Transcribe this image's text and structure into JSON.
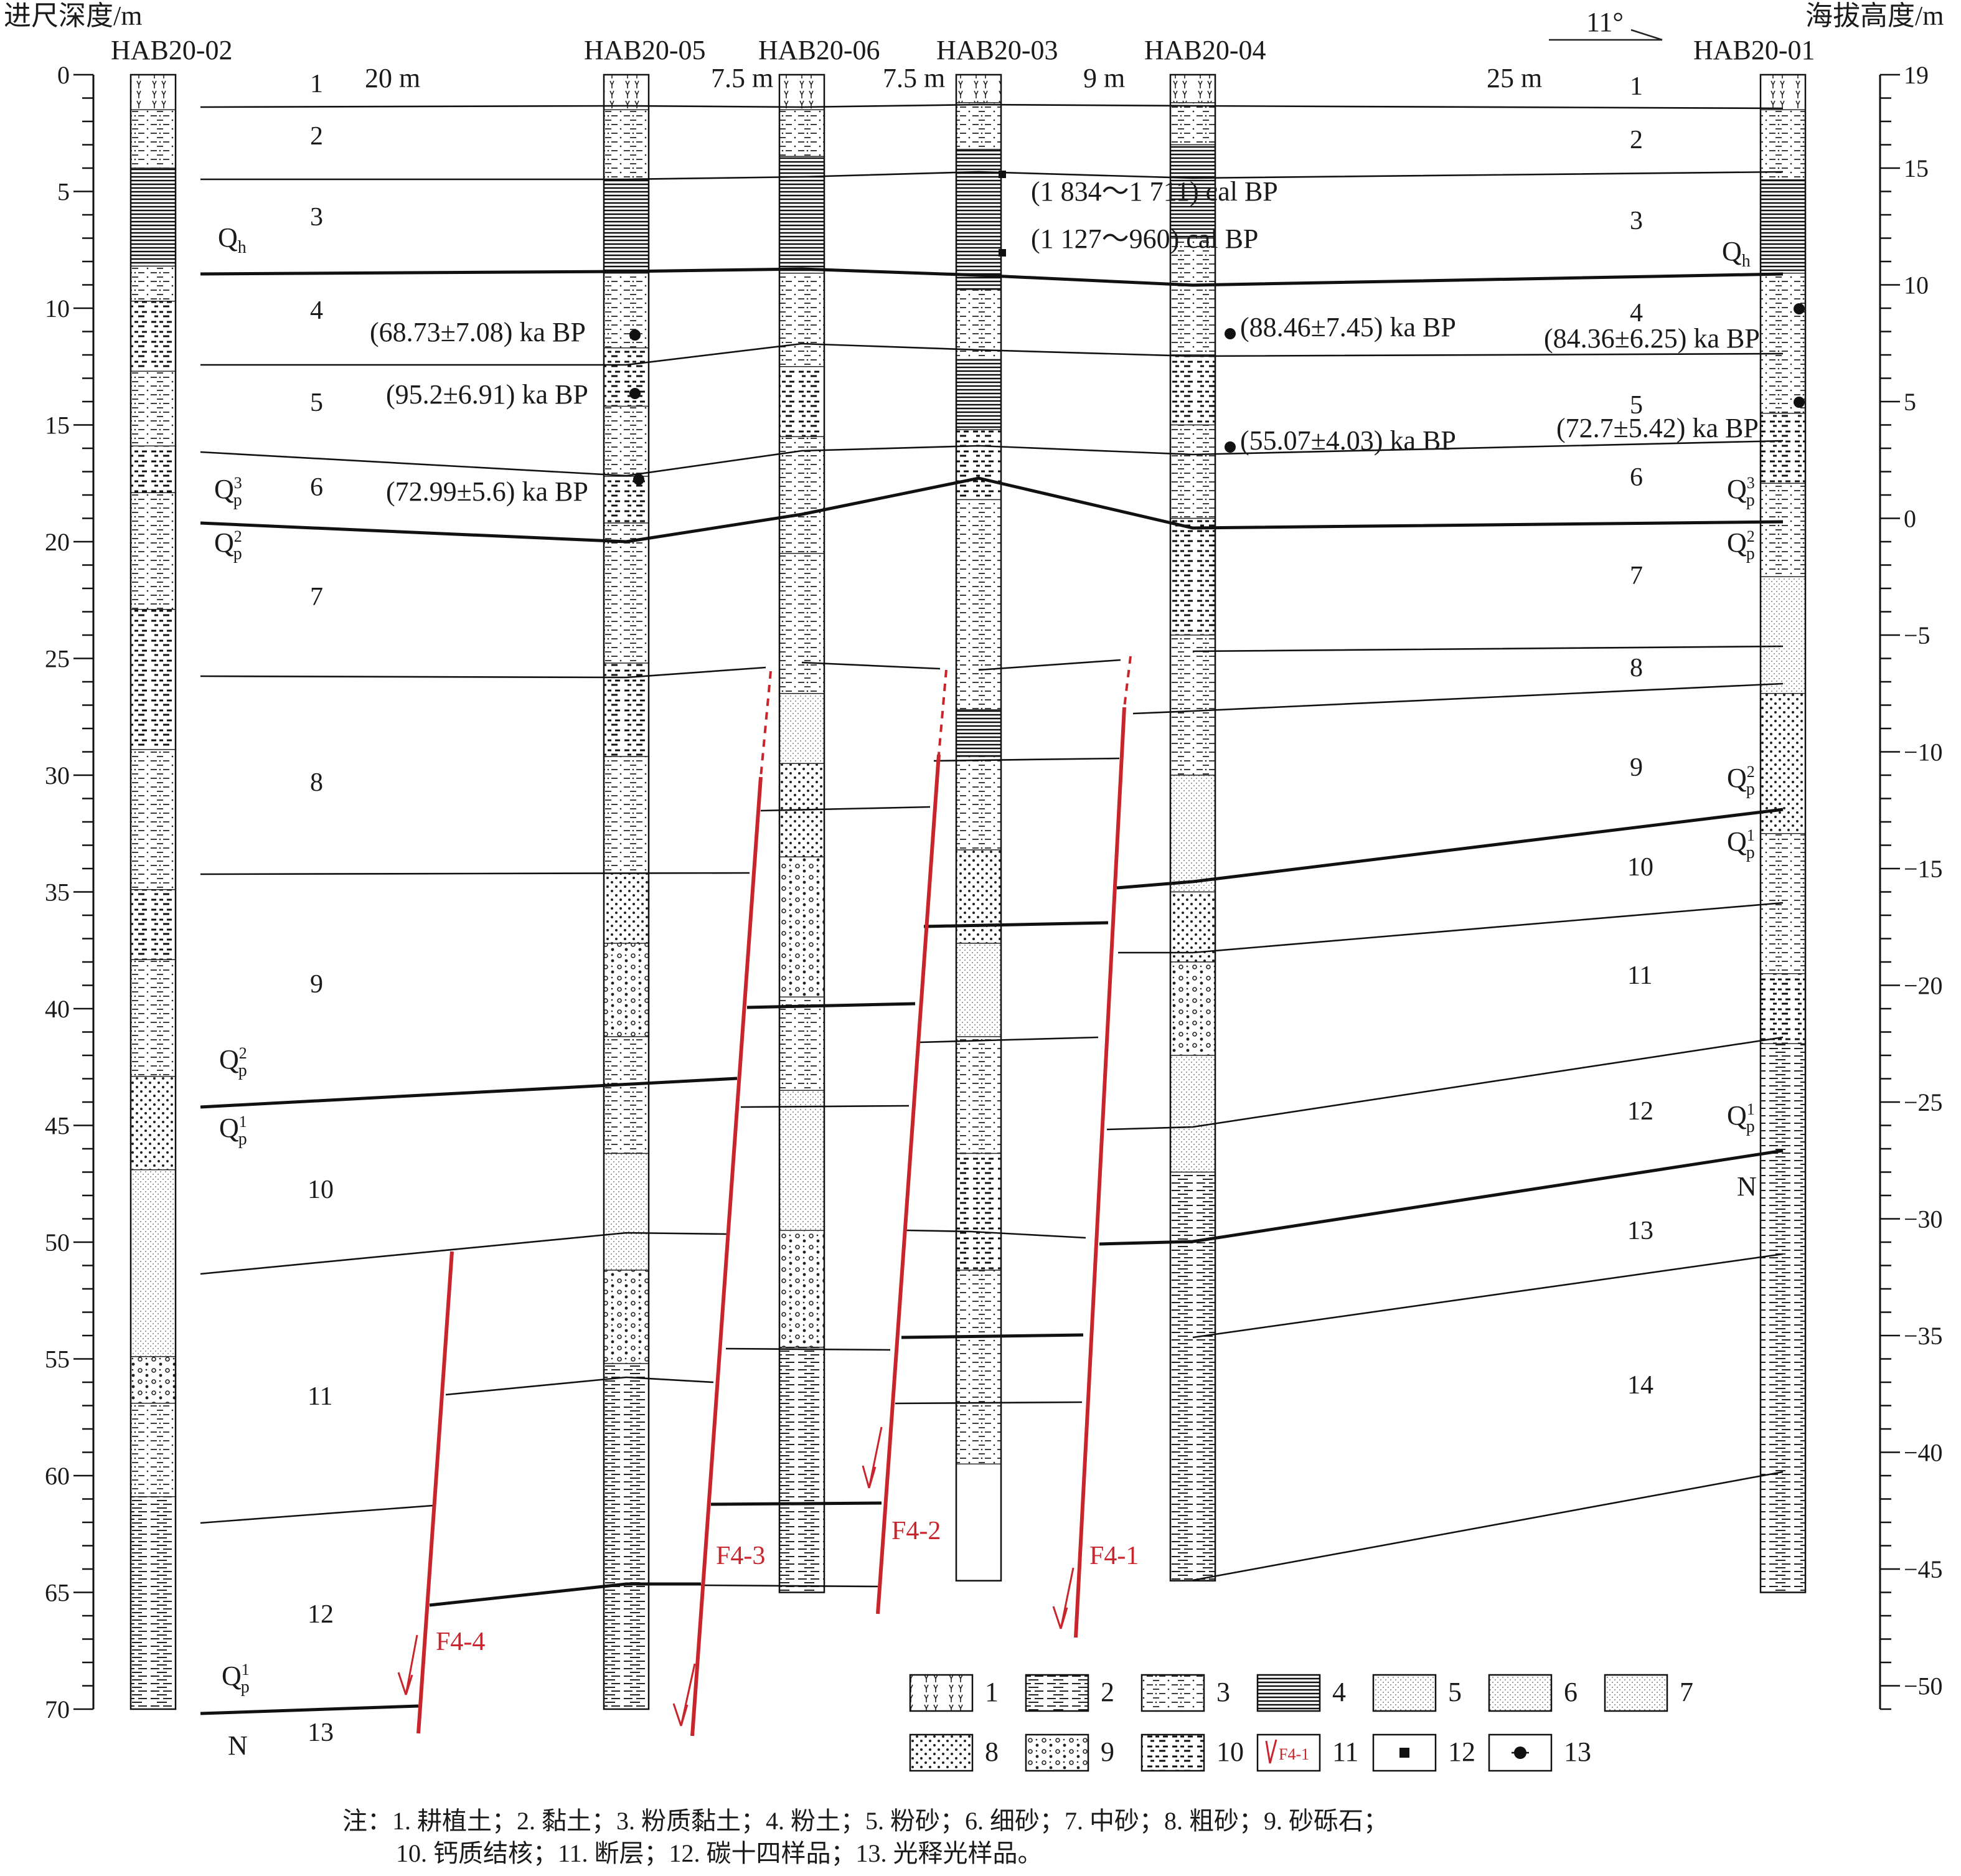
{
  "axes": {
    "left_title": "进尺深度/m",
    "right_title": "海拔高度/m",
    "left_ticks": [
      "0",
      "5",
      "10",
      "15",
      "20",
      "25",
      "30",
      "35",
      "40",
      "45",
      "50",
      "55",
      "60",
      "65",
      "70"
    ],
    "right_ticks": [
      "19",
      "15",
      "10",
      "5",
      "0",
      "−5",
      "−10",
      "−15",
      "−20",
      "−25",
      "−30",
      "−35",
      "−40",
      "−45",
      "−50"
    ]
  },
  "orientation": "11°",
  "boreholes": [
    {
      "name": "HAB20-02",
      "bottom_depth": 70
    },
    {
      "name": "HAB20-05",
      "bottom_depth": 70
    },
    {
      "name": "HAB20-06",
      "bottom_depth": 65
    },
    {
      "name": "HAB20-03",
      "bottom_depth": 64.5
    },
    {
      "name": "HAB20-04",
      "bottom_depth": 64.5
    },
    {
      "name": "HAB20-01",
      "bottom_depth": 65
    }
  ],
  "spacings": [
    "20 m",
    "7.5 m",
    "7.5 m",
    "9 m",
    "25 m"
  ],
  "layer_numbers": {
    "left": [
      "1",
      "2",
      "3",
      "4",
      "5",
      "6",
      "7",
      "8",
      "9",
      "10",
      "11",
      "12",
      "13"
    ],
    "right": [
      "1",
      "2",
      "3",
      "4",
      "5",
      "6",
      "7",
      "8",
      "9",
      "10",
      "11",
      "12",
      "13",
      "14"
    ]
  },
  "strata": {
    "Qh": "Q",
    "Qh_sub": "h",
    "Qp": "Q",
    "Qp_sub": "p",
    "sup1": "1",
    "sup2": "2",
    "sup3": "3",
    "N": "N"
  },
  "ages": [
    {
      "text": "(68.73±7.08) ka BP"
    },
    {
      "text": "(95.2±6.91) ka BP"
    },
    {
      "text": "(72.99±5.6) ka BP"
    },
    {
      "text": "(1 834～1 711) cal BP"
    },
    {
      "text": "(1 127～960) cal BP"
    },
    {
      "text": "(88.46±7.45) ka BP"
    },
    {
      "text": "(55.07±4.03) ka BP"
    },
    {
      "text": "(84.36±6.25) ka BP"
    },
    {
      "text": "(72.7±5.42) ka BP"
    }
  ],
  "faults": [
    "F4-1",
    "F4-2",
    "F4-3",
    "F4-4"
  ],
  "fault_color": "#c8252c",
  "legend": {
    "items": [
      "1",
      "2",
      "3",
      "4",
      "5",
      "6",
      "7",
      "8",
      "9",
      "10",
      "11",
      "12",
      "13"
    ],
    "fault_box_label": "F4-1"
  },
  "note": {
    "line1": "注：1. 耕植土；2. 黏土；3. 粉质黏土；4. 粉土；5. 粉砂；6. 细砂；7. 中砂；8. 粗砂；9. 砂砾石；",
    "line2": "10. 钙质结核；11. 断层；12. 碳十四样品；13. 光释光样品。"
  }
}
